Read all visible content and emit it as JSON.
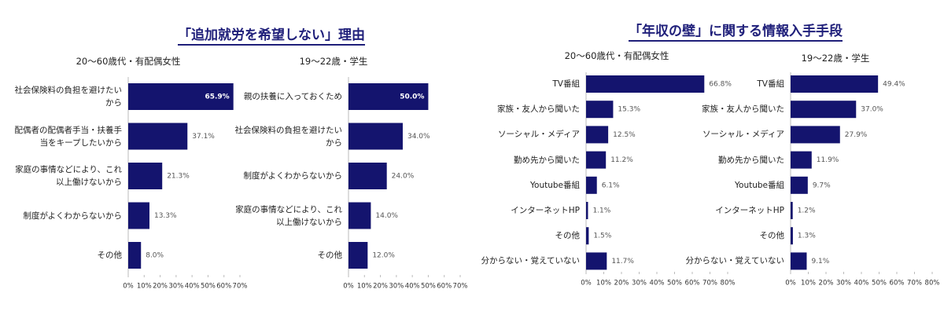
{
  "chart_data": [
    {
      "type": "hbar",
      "title": "「追加就労を希望しない」理由",
      "subtitle": "20〜60歳代・有配偶女性",
      "color": "#14146e",
      "categories": [
        "社会保険料の負担を避けたいから",
        "配偶者の配偶者手当・扶養手当をキープしたいから",
        "家庭の事情などにより、これ以上働けないから",
        "制度がよくわからないから",
        "その他"
      ],
      "values": [
        65.9,
        37.1,
        21.3,
        13.3,
        8.0
      ],
      "value_labels": [
        "65.9%",
        "37.1%",
        "21.3%",
        "13.3%",
        "8.0%"
      ],
      "xlim": [
        0,
        70
      ],
      "xticks": [
        {
          "value": 0,
          "label": "0%"
        },
        {
          "value": 10,
          "label": "10%"
        },
        {
          "value": 20,
          "label": "20%"
        },
        {
          "value": 30,
          "label": "30%"
        },
        {
          "value": 40,
          "label": "40%"
        },
        {
          "value": 50,
          "label": "50%"
        },
        {
          "value": 60,
          "label": "60%"
        },
        {
          "value": 70,
          "label": "70%"
        }
      ]
    },
    {
      "type": "hbar",
      "subtitle": "19〜22歳・学生",
      "color": "#14146e",
      "categories": [
        "親の扶養に入っておくため",
        "社会保険料の負担を避けたいから",
        "制度がよくわからないから",
        "家庭の事情などにより、これ以上働けないから",
        "その他"
      ],
      "values": [
        50.0,
        34.0,
        24.0,
        14.0,
        12.0
      ],
      "value_labels": [
        "50.0%",
        "34.0%",
        "24.0%",
        "14.0%",
        "12.0%"
      ],
      "xlim": [
        0,
        70
      ],
      "xticks": [
        {
          "value": 0,
          "label": "0%"
        },
        {
          "value": 10,
          "label": "10%"
        },
        {
          "value": 20,
          "label": "20%"
        },
        {
          "value": 30,
          "label": "30%"
        },
        {
          "value": 40,
          "label": "40%"
        },
        {
          "value": 50,
          "label": "50%"
        },
        {
          "value": 60,
          "label": "60%"
        },
        {
          "value": 70,
          "label": "70%"
        }
      ]
    },
    {
      "type": "hbar",
      "title": "「年収の壁」に関する情報入手手段",
      "subtitle": "20〜60歳代・有配偶女性",
      "color": "#14146e",
      "categories": [
        "TV番組",
        "家族・友人から聞いた",
        "ソーシャル・メディア",
        "勤め先から聞いた",
        "Youtube番組",
        "インターネットHP",
        "その他",
        "分からない・覚えていない"
      ],
      "values": [
        66.8,
        15.3,
        12.5,
        11.2,
        6.1,
        1.1,
        1.5,
        11.7
      ],
      "value_labels": [
        "66.8%",
        "15.3%",
        "12.5%",
        "11.2%",
        "6.1%",
        "1.1%",
        "1.5%",
        "11.7%"
      ],
      "xlim": [
        0,
        80
      ],
      "xticks": [
        {
          "value": 0,
          "label": "0%"
        },
        {
          "value": 10,
          "label": "10%"
        },
        {
          "value": 20,
          "label": "20%"
        },
        {
          "value": 30,
          "label": "30%"
        },
        {
          "value": 40,
          "label": "40%"
        },
        {
          "value": 50,
          "label": "50%"
        },
        {
          "value": 60,
          "label": "60%"
        },
        {
          "value": 70,
          "label": "70%"
        },
        {
          "value": 80,
          "label": "80%"
        }
      ]
    },
    {
      "type": "hbar",
      "subtitle": "19〜22歳・学生",
      "color": "#14146e",
      "categories": [
        "TV番組",
        "家族・友人から聞いた",
        "ソーシャル・メディア",
        "勤め先から聞いた",
        "Youtube番組",
        "インターネットHP",
        "その他",
        "分からない・覚えていない"
      ],
      "values": [
        49.4,
        37.0,
        27.9,
        11.9,
        9.7,
        1.2,
        1.3,
        9.1
      ],
      "value_labels": [
        "49.4%",
        "37.0%",
        "27.9%",
        "11.9%",
        "9.7%",
        "1.2%",
        "1.3%",
        "9.1%"
      ],
      "xlim": [
        0,
        80
      ],
      "xticks": [
        {
          "value": 0,
          "label": "0%"
        },
        {
          "value": 10,
          "label": "10%"
        },
        {
          "value": 20,
          "label": "20%"
        },
        {
          "value": 30,
          "label": "30%"
        },
        {
          "value": 40,
          "label": "40%"
        },
        {
          "value": 50,
          "label": "50%"
        },
        {
          "value": 60,
          "label": "60%"
        },
        {
          "value": 70,
          "label": "70%"
        },
        {
          "value": 80,
          "label": "80%"
        }
      ]
    }
  ]
}
